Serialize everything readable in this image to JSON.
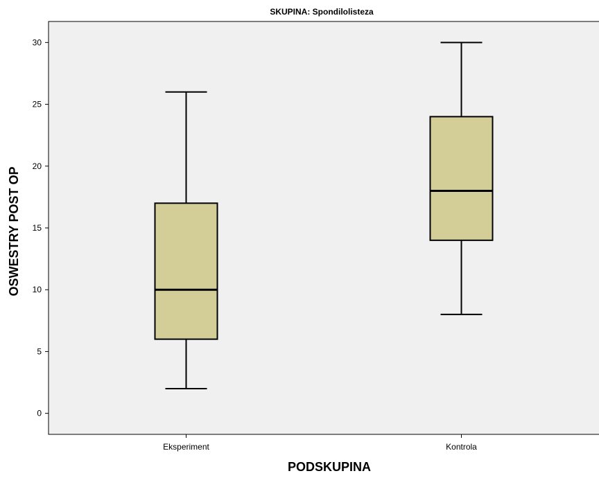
{
  "chart_data": {
    "type": "boxplot",
    "title": "SKUPINA: Spondilolisteza",
    "xlabel": "PODSKUPINA",
    "ylabel": "OSWESTRY POST OP",
    "ylim": [
      -1.7,
      31.7
    ],
    "yticks": [
      0,
      5,
      10,
      15,
      20,
      25,
      30
    ],
    "grid": false,
    "categories": [
      "Eksperiment",
      "Kontrola"
    ],
    "boxes": [
      {
        "category": "Eksperiment",
        "min": 2,
        "q1": 6,
        "median": 10,
        "q3": 17,
        "max": 26
      },
      {
        "category": "Kontrola",
        "min": 8,
        "q1": 14,
        "median": 18,
        "q3": 24,
        "max": 30
      }
    ],
    "colors": {
      "plot_background": "#f0f0f0",
      "box_fill": "#d3ce97",
      "stroke": "#000000"
    }
  }
}
